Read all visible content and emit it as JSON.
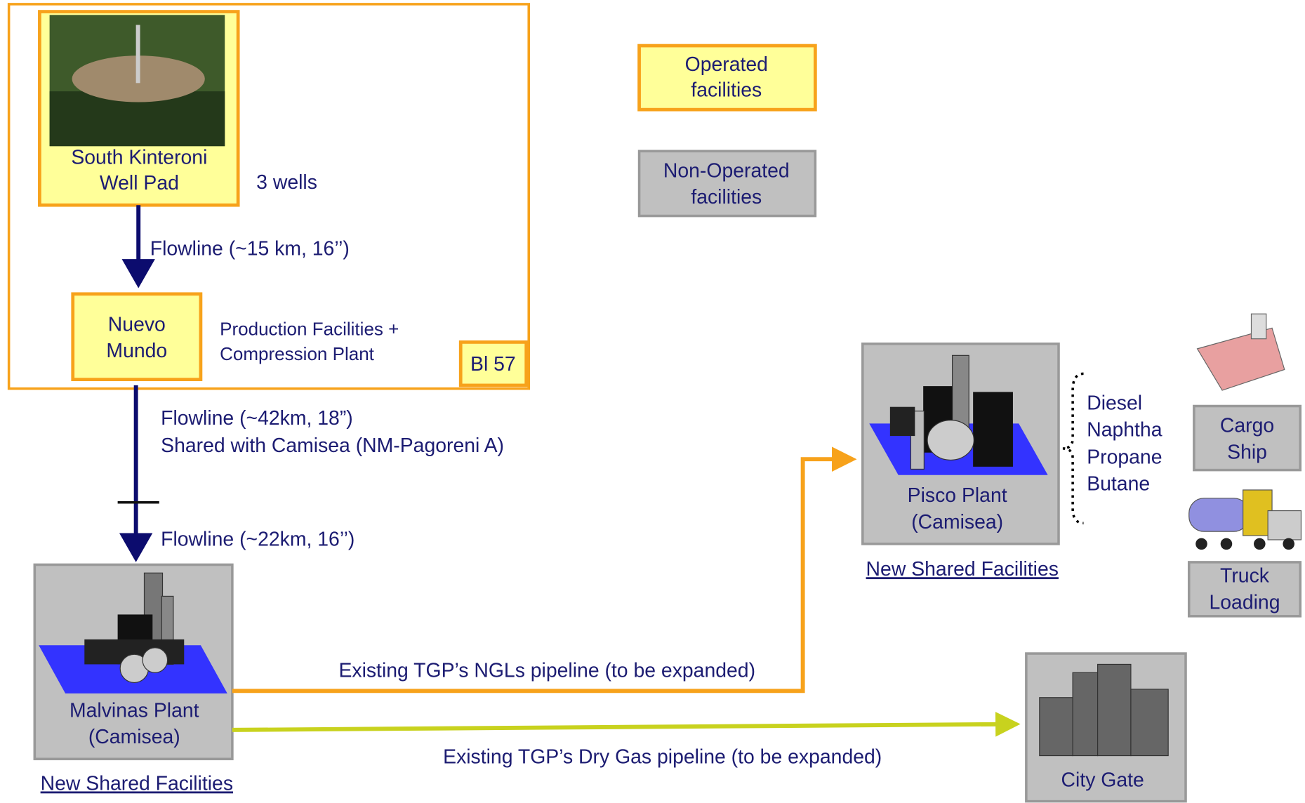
{
  "nodes": [
    {
      "lines": [
        "South Kinteroni",
        "Well Pad"
      ]
    },
    {
      "lines": [
        "Nuevo",
        "Mundo"
      ]
    },
    {
      "lines": [
        "Bl 57"
      ]
    },
    {
      "lines": [
        "Operated",
        "facilities"
      ]
    },
    {
      "lines": [
        "Non-Operated",
        "facilities"
      ]
    },
    {
      "lines": [
        "Malvinas Plant",
        "(Camisea)"
      ]
    },
    {
      "lines": [
        "Pisco Plant",
        "(Camisea)"
      ]
    },
    {
      "lines": [
        "Cargo",
        "Ship"
      ]
    },
    {
      "lines": [
        "Truck",
        "Loading"
      ]
    },
    {
      "lines": [
        "City Gate"
      ]
    }
  ],
  "annotations": [
    {
      "lines": [
        "3 wells"
      ]
    },
    {
      "lines": [
        "Flowline (~15 km, 16’’)"
      ]
    },
    {
      "lines": [
        "Production Facilities +",
        "Compression Plant"
      ]
    },
    {
      "lines": [
        "Flowline (~42km, 18”)",
        "Shared with Camisea (NM-Pagoreni A)"
      ]
    },
    {
      "lines": [
        "Flowline (~22km, 16’’)"
      ]
    },
    {
      "lines": [
        "Existing  TGP’s NGLs pipeline (to be expanded)"
      ]
    },
    {
      "lines": [
        "Existing TGP’s Dry Gas pipeline (to be expanded)"
      ]
    },
    {
      "lines": [
        "New Shared Facilities"
      ]
    },
    {
      "lines": [
        "New Shared Facilities"
      ]
    },
    {
      "lines": [
        "Diesel",
        "Naphtha",
        "Propane",
        "Butane"
      ]
    }
  ]
}
